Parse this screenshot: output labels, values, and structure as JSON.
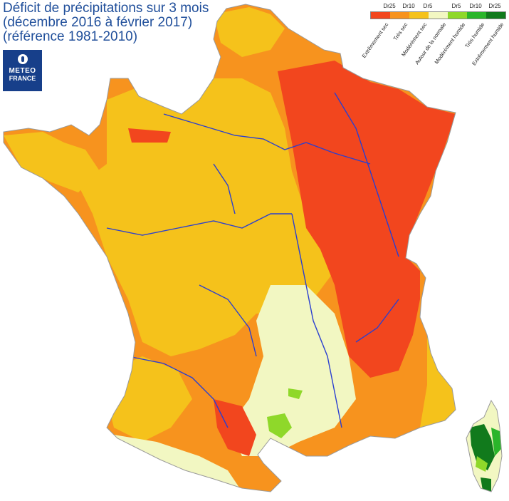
{
  "title": {
    "line1": "Déficit de précipitations sur 3 mois",
    "line2": "(décembre 2016 à février 2017)",
    "line3": "(référence 1981-2010)"
  },
  "logo": {
    "line1": "METEO",
    "line2": "FRANCE"
  },
  "legend": {
    "codes": [
      "Dr25",
      "Dr10",
      "Dr5",
      "Dr5",
      "Dr10",
      "Dr25"
    ],
    "classes": [
      {
        "label": "Extrêmement sec",
        "color": "#f2461e"
      },
      {
        "label": "Très sec",
        "color": "#f7931e"
      },
      {
        "label": "Modérément sec",
        "color": "#f5c21b"
      },
      {
        "label": "Autour de la normale",
        "color": "#f2f7c2"
      },
      {
        "label": "Modérément humide",
        "color": "#8fd82a"
      },
      {
        "label": "Très humide",
        "color": "#2ab52a"
      },
      {
        "label": "Extrêmement humide",
        "color": "#117a1c"
      }
    ]
  },
  "colors": {
    "rivers": "#2a3fd0"
  }
}
